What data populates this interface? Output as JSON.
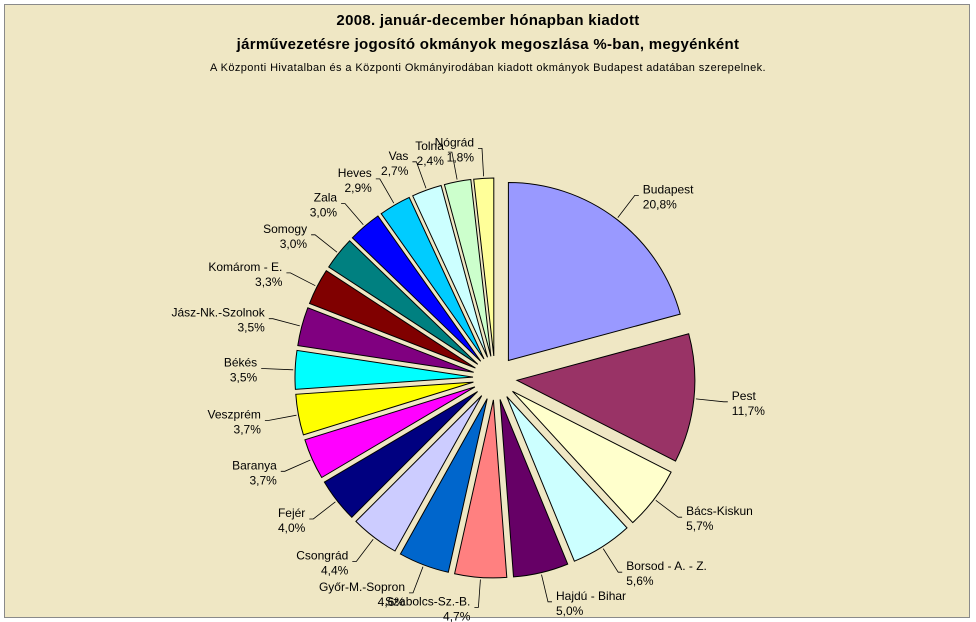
{
  "chart_data": {
    "type": "pie",
    "title": "2008. január-december hónapban kiadott",
    "title_line2": "járművezetésre jogosító okmányok megoszlása %-ban, megyénként",
    "subtitle": "A Központi Hivatalban és a Központi Okmányirodában kiadott okmányok Budapest adatában szerepelnek.",
    "slices": [
      {
        "name": "Budapest",
        "value": 20.8,
        "label": "20,8%",
        "color": "#9999ff"
      },
      {
        "name": "Pest",
        "value": 11.7,
        "label": "11,7%",
        "color": "#993366"
      },
      {
        "name": "Bács-Kiskun",
        "value": 5.7,
        "label": "5,7%",
        "color": "#ffffcc"
      },
      {
        "name": "Borsod - A. - Z.",
        "value": 5.6,
        "label": "5,6%",
        "color": "#ccffff"
      },
      {
        "name": "Hajdú - Bihar",
        "value": 5.0,
        "label": "5,0%",
        "color": "#660066"
      },
      {
        "name": "Szabolcs-Sz.-B.",
        "value": 4.7,
        "label": "4,7%",
        "color": "#ff8080"
      },
      {
        "name": "Győr-M.-Sopron",
        "value": 4.6,
        "label": "4,6%",
        "color": "#0066cc"
      },
      {
        "name": "Csongrád",
        "value": 4.4,
        "label": "4,4%",
        "color": "#ccccff"
      },
      {
        "name": "Fejér",
        "value": 4.0,
        "label": "4,0%",
        "color": "#000080"
      },
      {
        "name": "Baranya",
        "value": 3.7,
        "label": "3,7%",
        "color": "#ff00ff"
      },
      {
        "name": "Veszprém",
        "value": 3.7,
        "label": "3,7%",
        "color": "#ffff00"
      },
      {
        "name": "Békés",
        "value": 3.5,
        "label": "3,5%",
        "color": "#00ffff"
      },
      {
        "name": "Jász-Nk.-Szolnok",
        "value": 3.5,
        "label": "3,5%",
        "color": "#800080"
      },
      {
        "name": "Komárom - E.",
        "value": 3.3,
        "label": "3,3%",
        "color": "#800000"
      },
      {
        "name": "Somogy",
        "value": 3.0,
        "label": "3,0%",
        "color": "#008080"
      },
      {
        "name": "Zala",
        "value": 3.0,
        "label": "3,0%",
        "color": "#0000ff"
      },
      {
        "name": "Heves",
        "value": 2.9,
        "label": "2,9%",
        "color": "#00ccff"
      },
      {
        "name": "Vas",
        "value": 2.7,
        "label": "2,7%",
        "color": "#ccffff"
      },
      {
        "name": "Tolna",
        "value": 2.4,
        "label": "2,4%",
        "color": "#ccffcc"
      },
      {
        "name": "Nógrád",
        "value": 1.8,
        "label": "1,8%",
        "color": "#ffff99"
      }
    ]
  }
}
